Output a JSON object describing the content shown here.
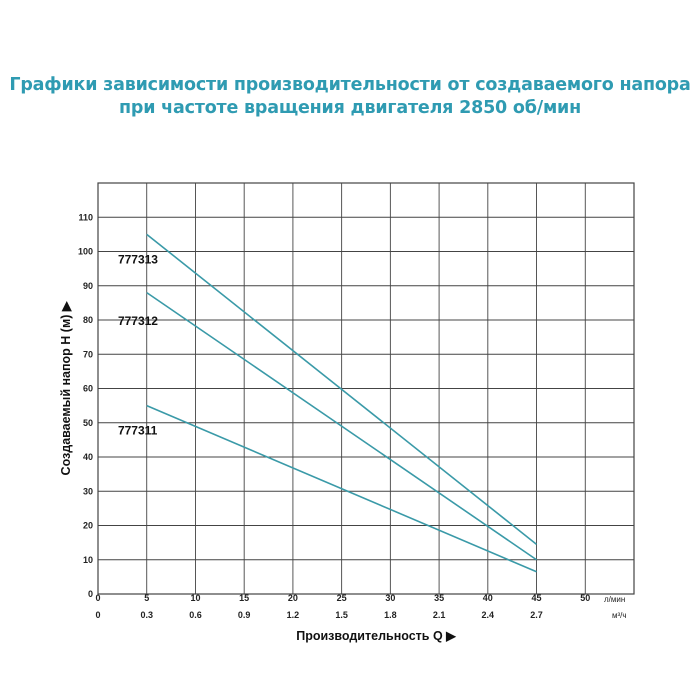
{
  "title_lines": [
    "Графики зависимости производительности от создаваемого напора",
    "при частоте вращения двигателя 2850 об/мин"
  ],
  "chart_data": {
    "type": "line",
    "title": "Графики зависимости производительности от создаваемого напора при частоте вращения двигателя 2850 об/мин",
    "xlabel": "Производительность Q",
    "ylabel": "Создаваемый напор H (м)",
    "x_unit": "л/мин",
    "x2_unit": "м³/ч",
    "xlim": [
      0,
      55
    ],
    "ylim": [
      0,
      120
    ],
    "x_ticks": [
      0,
      5,
      10,
      15,
      20,
      25,
      30,
      35,
      40,
      45,
      50
    ],
    "x2_ticks": [
      "0",
      "0.3",
      "0.6",
      "0.9",
      "1.2",
      "1.5",
      "1.8",
      "2.1",
      "2.4",
      "2.7"
    ],
    "y_ticks": [
      0,
      10,
      20,
      30,
      40,
      50,
      60,
      70,
      80,
      90,
      100,
      110
    ],
    "grid": true,
    "series": [
      {
        "name": "777313",
        "x": [
          5,
          45
        ],
        "y": [
          105,
          14.5
        ],
        "label_pos": [
          0.2,
          98
        ]
      },
      {
        "name": "777312",
        "x": [
          5,
          45
        ],
        "y": [
          88,
          10
        ],
        "label_pos": [
          0.2,
          80
        ]
      },
      {
        "name": "777311",
        "x": [
          5,
          45
        ],
        "y": [
          55,
          6.5
        ],
        "label_pos": [
          0.2,
          48
        ]
      }
    ]
  },
  "colors": {
    "title": "#2f9bb2",
    "line": "#3a9aa8",
    "grid": "#444444"
  }
}
